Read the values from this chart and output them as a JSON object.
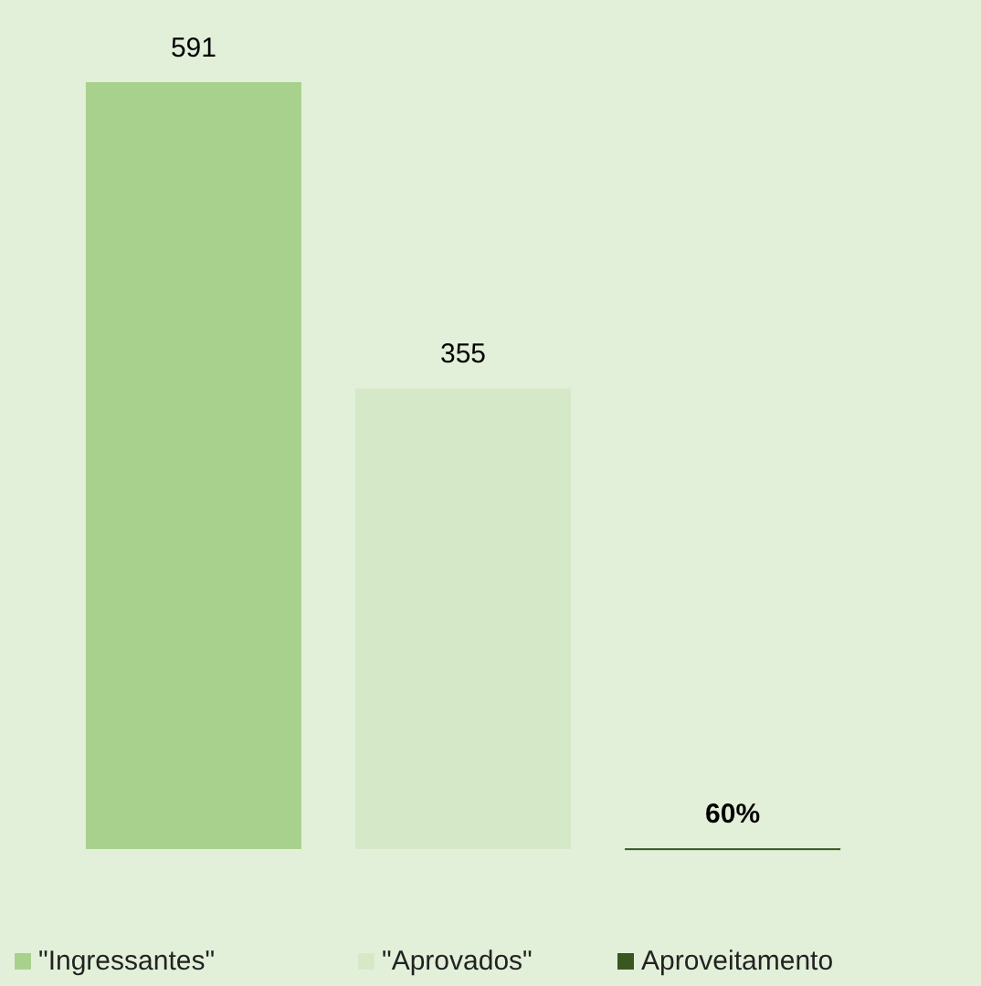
{
  "chart_data": {
    "type": "bar",
    "categories": [
      null
    ],
    "series": [
      {
        "name": "\"Ingressantes\"",
        "color": "#a9d18e",
        "values": [
          591
        ],
        "value_labels": [
          "591"
        ]
      },
      {
        "name": "\"Aprovados\"",
        "color": "#d5e9c9",
        "values": [
          355
        ],
        "value_labels": [
          "355"
        ]
      },
      {
        "name": "Aproveitamento",
        "color": "#385723",
        "values": [
          0.6
        ],
        "value_labels": [
          "60%"
        ]
      }
    ],
    "legend": "bottom",
    "grid": false
  }
}
